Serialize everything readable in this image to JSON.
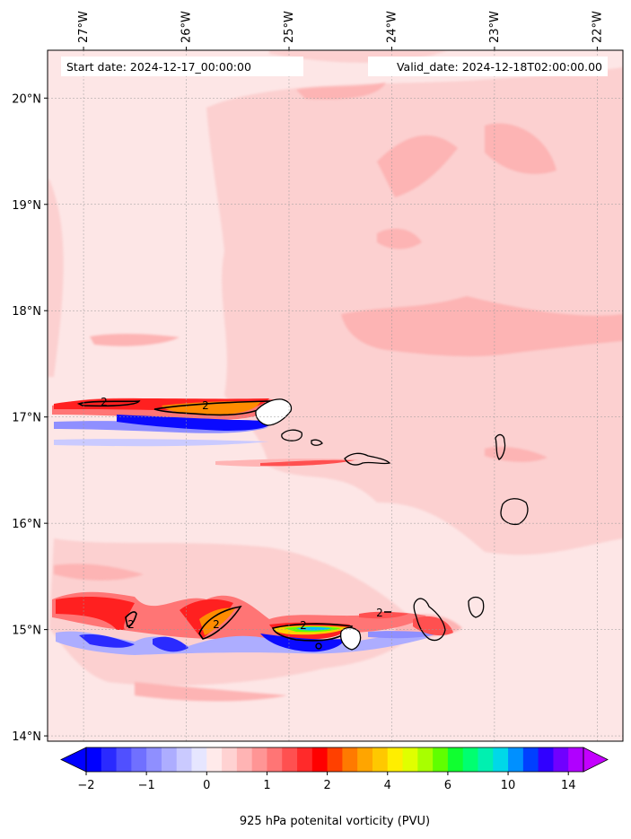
{
  "header": {
    "start_label": "Start date: 2024-12-17_00:00:00",
    "valid_label": "Valid_date: 2024-12-18T02:00:00.00"
  },
  "map": {
    "lon_range": [
      -27.35,
      -21.75
    ],
    "lat_range": [
      13.95,
      20.45
    ],
    "lon_ticks": [
      {
        "value": -27,
        "label": "27°W"
      },
      {
        "value": -26,
        "label": "26°W"
      },
      {
        "value": -25,
        "label": "25°W"
      },
      {
        "value": -24,
        "label": "24°W"
      },
      {
        "value": -23,
        "label": "23°W"
      },
      {
        "value": -22,
        "label": "22°W"
      }
    ],
    "lat_ticks": [
      {
        "value": 20,
        "label": "20°N"
      },
      {
        "value": 19,
        "label": "19°N"
      },
      {
        "value": 18,
        "label": "18°N"
      },
      {
        "value": 17,
        "label": "17°N"
      },
      {
        "value": 16,
        "label": "16°N"
      },
      {
        "value": 15,
        "label": "15°N"
      },
      {
        "value": 14,
        "label": "14°N"
      }
    ],
    "gridlines": true,
    "contour_level_label": "2",
    "colors": {
      "background_field": "#fde6e6",
      "field_light": "#fcd0d0",
      "field_medium": "#fdb4b4",
      "high_pv": "#ff2020",
      "negative_pv": "#0a0aff",
      "peak_pv": "#ff8c00"
    }
  },
  "colorbar": {
    "label": "925 hPa potenital vorticity (PVU)",
    "extend": "both",
    "colors": [
      "#0000ff",
      "#2a2aff",
      "#5050ff",
      "#7070ff",
      "#8f8fff",
      "#adadff",
      "#cacaff",
      "#e6e6ff",
      "#ffeaea",
      "#ffd2d2",
      "#ffb4b4",
      "#ff9595",
      "#ff7575",
      "#ff5050",
      "#ff2a2a",
      "#ff0000",
      "#ff4000",
      "#ff7a00",
      "#ffa500",
      "#ffc800",
      "#ffee00",
      "#e0ff00",
      "#a8ff00",
      "#60ff00",
      "#10ff30",
      "#00ff70",
      "#00f0b0",
      "#00d8e8",
      "#0090ff",
      "#0040ff",
      "#3000ff",
      "#7000ff",
      "#b000ff"
    ],
    "end_colors": {
      "low": "#0000ff",
      "high": "#c400ff"
    },
    "ticks": [
      {
        "index": 0,
        "label": "−2"
      },
      {
        "index": 4,
        "label": "−1"
      },
      {
        "index": 8,
        "label": "0"
      },
      {
        "index": 12,
        "label": "1"
      },
      {
        "index": 16,
        "label": "2"
      },
      {
        "index": 20,
        "label": "4"
      },
      {
        "index": 24,
        "label": "6"
      },
      {
        "index": 28,
        "label": "10"
      },
      {
        "index": 32,
        "label": "14"
      }
    ]
  }
}
